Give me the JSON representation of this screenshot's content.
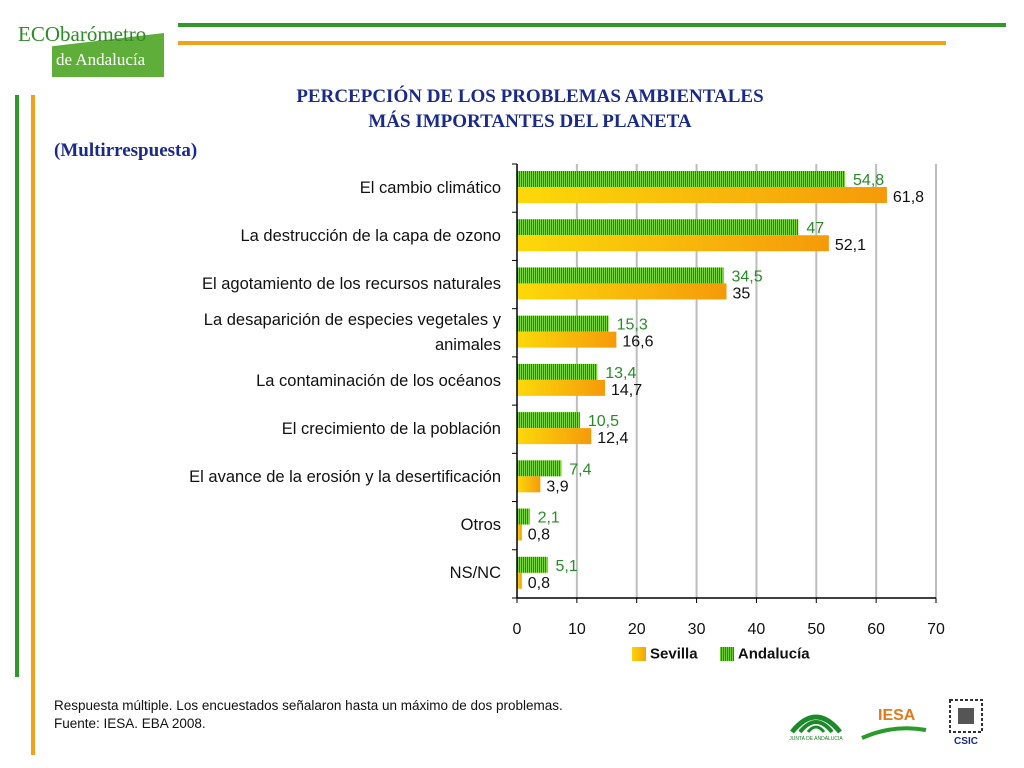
{
  "logo": {
    "eco": "ECO",
    "barometro": "barómetro",
    "andalucia": "de Andalucía"
  },
  "title_line1": "PERCEPCIÓN DE LOS PROBLEMAS AMBIENTALES",
  "title_line2": "MÁS IMPORTANTES DEL PLANETA",
  "subtitle": "(Multirrespuesta)",
  "footnote_line1": "Respuesta múltiple. Los encuestados señalaron hasta un máximo de dos  problemas.",
  "footnote_line2": "Fuente: IESA. EBA 2008.",
  "logos": {
    "junta": "JUNTA DE ANDALUCIA",
    "iesa": "IESA",
    "csic": "CSIC"
  },
  "colors": {
    "title": "#1a2a8a",
    "sevilla_label": "#111111",
    "andalucia_label": "#2a8a2a",
    "green_line": "#2f9a2a",
    "orange_line": "#f3a11a"
  },
  "chart_data": {
    "type": "bar",
    "orientation": "horizontal",
    "categories": [
      "El cambio climático",
      "La destrucción de la capa de ozono",
      "El agotamiento de los recursos naturales",
      "La desaparición de especies vegetales y animales",
      "La contaminación de los océanos",
      "El crecimiento de la población",
      "El avance de la erosión y la desertificación",
      "Otros",
      "NS/NC"
    ],
    "category_lines": [
      [
        "El cambio climático"
      ],
      [
        "La destrucción de la capa de ozono"
      ],
      [
        "El agotamiento de los recursos naturales"
      ],
      [
        "La desaparición de especies vegetales y",
        "animales"
      ],
      [
        "La contaminación de los océanos"
      ],
      [
        "El crecimiento de la población"
      ],
      [
        "El avance de la erosión y la desertificación"
      ],
      [
        "Otros"
      ],
      [
        "NS/NC"
      ]
    ],
    "series": [
      {
        "name": "Andalucía",
        "values": [
          54.8,
          47,
          34.5,
          15.3,
          13.4,
          10.5,
          7.4,
          2.1,
          5.1
        ],
        "labels": [
          "54,8",
          "47",
          "34,5",
          "15,3",
          "13,4",
          "10,5",
          "7,4",
          "2,1",
          "5,1"
        ]
      },
      {
        "name": "Sevilla",
        "values": [
          61.8,
          52.1,
          35,
          16.6,
          14.7,
          12.4,
          3.9,
          0.8,
          0.8
        ],
        "labels": [
          "61,8",
          "52,1",
          "35",
          "16,6",
          "14,7",
          "12,4",
          "3,9",
          "0,8",
          "0,8"
        ]
      }
    ],
    "xlim": [
      0,
      70
    ],
    "xticks": [
      "0",
      "10",
      "20",
      "30",
      "40",
      "50",
      "60",
      "70"
    ],
    "grid": true,
    "legend": [
      "Sevilla",
      "Andalucía"
    ],
    "legend_position": "bottom"
  }
}
